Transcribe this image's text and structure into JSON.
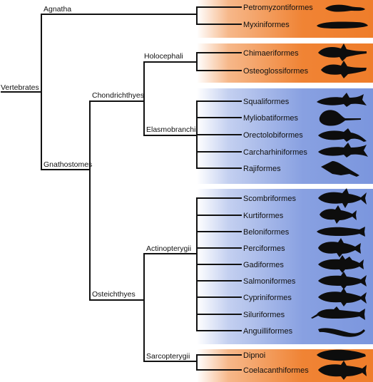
{
  "tree": {
    "root": "Vertebrates",
    "clades": {
      "agnatha": "Agnatha",
      "gnathostomes": "Gnathostomes",
      "chondrichthyes": "Chondrichthyes",
      "holocephali": "Holocephali",
      "elasmobranchii": "Elasmobranchii",
      "osteichthyes": "Osteichthyes",
      "actinopterygii": "Actinopterygii",
      "sarcopterygii": "Sarcopterygii"
    },
    "tips": {
      "agnatha": [
        "Petromyzontiformes",
        "Myxiniformes"
      ],
      "holocephali": [
        "Chimaeriformes",
        "Osteoglossiformes"
      ],
      "elasmobranchii": [
        "Squaliformes",
        "Myliobatiformes",
        "Orectolobiformes",
        "Carcharhiniformes",
        "Rajiformes"
      ],
      "actinopterygii": [
        "Scombriformes",
        "Kurtiformes",
        "Beloniformes",
        "Perciformes",
        "Gadiformes",
        "Salmoniformes",
        "Cypriniformes",
        "Siluriformes",
        "Anguilliformes"
      ],
      "sarcopterygii": [
        "Dipnoi",
        "Coelacanthiformes"
      ]
    }
  },
  "colors": {
    "orange_band": "#ef7d2a",
    "blue_band": "#7b96de",
    "line": "#111111",
    "silhouette": "#0d0d0d"
  },
  "icons": {
    "Petromyzontiformes": "lamprey-silhouette-icon",
    "Myxiniformes": "hagfish-silhouette-icon",
    "Chimaeriformes": "chimaera-silhouette-icon",
    "Osteoglossiformes": "chimaera-silhouette-icon",
    "Squaliformes": "shark-silhouette-icon",
    "Myliobatiformes": "ray-silhouette-icon",
    "Orectolobiformes": "shark-silhouette-icon",
    "Carcharhiniformes": "shark-silhouette-icon",
    "Rajiformes": "ray-silhouette-icon",
    "Scombriformes": "fish-silhouette-icon",
    "Kurtiformes": "fish-silhouette-icon",
    "Beloniformes": "fish-silhouette-icon",
    "Perciformes": "fish-silhouette-icon",
    "Gadiformes": "fish-silhouette-icon",
    "Salmoniformes": "fish-silhouette-icon",
    "Cypriniformes": "fish-silhouette-icon",
    "Siluriformes": "catfish-silhouette-icon",
    "Anguilliformes": "eel-silhouette-icon",
    "Dipnoi": "lungfish-silhouette-icon",
    "Coelacanthiformes": "coelacanth-silhouette-icon"
  }
}
